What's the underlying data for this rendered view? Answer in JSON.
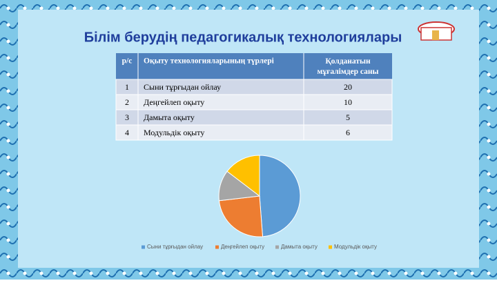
{
  "title": "Білім берудің педагогикалық технологиялары",
  "table": {
    "header": [
      "р/с",
      "Оқыту технологияларының түрлері",
      "Қолданатын мұғалімдер саны"
    ],
    "rows": [
      [
        1,
        "Сыни тұрғыдан ойлау",
        20
      ],
      [
        2,
        "Деңгейлеп оқыту",
        10
      ],
      [
        3,
        "Дамыта оқыту",
        5
      ],
      [
        4,
        "Модульдік  оқыту",
        6
      ]
    ]
  },
  "chart_data": {
    "type": "pie",
    "categories": [
      "Сыни тұрғыдан ойлау",
      "Деңгейлеп оқыту",
      "Дамыта оқыту",
      "Модульдік  оқыту"
    ],
    "values": [
      20,
      10,
      5,
      6
    ],
    "colors": [
      "#5b9bd5",
      "#ed7d31",
      "#a5a5a5",
      "#ffc000"
    ],
    "legend": "bottom"
  }
}
